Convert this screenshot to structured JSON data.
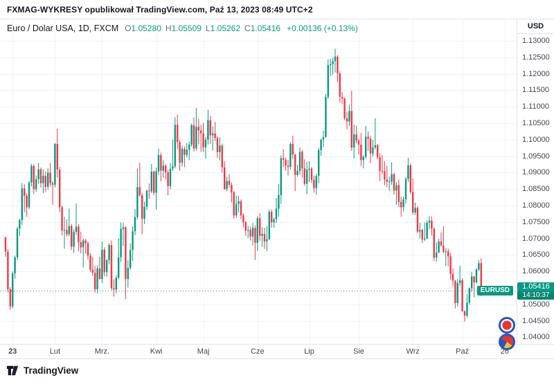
{
  "header": {
    "text": "FXMAG-WYKRESY opublikował TradingView.com, Paź 13, 2023 08:49 UTC+2"
  },
  "legend": {
    "symbol": "Euro / Dolar USA, 1D, FXCM",
    "o_label": "O",
    "o_value": "1.05280",
    "h_label": "H",
    "h_value": "1.05509",
    "l_label": "L",
    "l_value": "1.05262",
    "c_label": "C",
    "c_value": "1.05416",
    "change": "+0.00136 (+0.13%)"
  },
  "price_flag": {
    "symbol": "EURUSD",
    "price": "1.05416",
    "countdown": "14:10:37"
  },
  "footer": {
    "brand": "TradingView"
  },
  "colors": {
    "up": "#089981",
    "down": "#f23645",
    "accent": "#089981",
    "grid": "#f0f3fa",
    "axis_text": "#434651",
    "border": "#e0e3eb",
    "price_line": "#089981"
  },
  "chart_data": {
    "type": "candlestick",
    "title": "Euro / Dolar USA, 1D, FXCM",
    "ylabel": "USD",
    "y_range": [
      1.038,
      1.1365
    ],
    "y_ticks": [
      "1.13000",
      "1.12500",
      "1.12000",
      "1.11500",
      "1.11000",
      "1.10500",
      "1.10000",
      "1.09500",
      "1.09000",
      "1.08500",
      "1.08000",
      "1.07500",
      "1.07000",
      "1.06500",
      "1.06000",
      "1.05500",
      "1.05000",
      "1.04500",
      "1.04000"
    ],
    "x_ticks": [
      {
        "label": "23",
        "index": 3,
        "year": true
      },
      {
        "label": "Lut",
        "index": 21
      },
      {
        "label": "Mrz.",
        "index": 41
      },
      {
        "label": "Kwi",
        "index": 64
      },
      {
        "label": "Maj",
        "index": 84
      },
      {
        "label": "Cze",
        "index": 107
      },
      {
        "label": "Lip",
        "index": 129
      },
      {
        "label": "Sie",
        "index": 150
      },
      {
        "label": "Wrz",
        "index": 173
      },
      {
        "label": "Paź",
        "index": 194
      },
      {
        "label": "26",
        "index": 212
      }
    ],
    "current_price": 1.05416,
    "candles": [
      [
        1.0703,
        1.0706,
        1.0644,
        1.066
      ],
      [
        1.066,
        1.0668,
        1.0537,
        1.0546
      ],
      [
        1.0546,
        1.0552,
        1.0484,
        1.0494
      ],
      [
        1.0494,
        1.06,
        1.0488,
        1.0594
      ],
      [
        1.0594,
        1.0648,
        1.0578,
        1.0643
      ],
      [
        1.0643,
        1.0736,
        1.0635,
        1.073
      ],
      [
        1.073,
        1.076,
        1.0708,
        1.0756
      ],
      [
        1.0756,
        1.0868,
        1.0741,
        1.0852
      ],
      [
        1.0852,
        1.0864,
        1.078,
        1.083
      ],
      [
        1.083,
        1.0837,
        1.0766,
        1.0795
      ],
      [
        1.0795,
        1.0874,
        1.0789,
        1.087
      ],
      [
        1.087,
        1.0927,
        1.0858,
        1.092
      ],
      [
        1.092,
        1.0925,
        1.0835,
        1.085
      ],
      [
        1.085,
        1.0891,
        1.0842,
        1.088
      ],
      [
        1.088,
        1.0929,
        1.0866,
        1.091
      ],
      [
        1.091,
        1.0915,
        1.0855,
        1.0868
      ],
      [
        1.0868,
        1.0909,
        1.0838,
        1.089
      ],
      [
        1.089,
        1.0903,
        1.0841,
        1.0857
      ],
      [
        1.0857,
        1.0913,
        1.0848,
        1.09
      ],
      [
        1.09,
        1.0929,
        1.0858,
        1.0868
      ],
      [
        1.0868,
        1.0874,
        1.0802,
        1.0863
      ],
      [
        1.0863,
        1.099,
        1.0855,
        1.0987
      ],
      [
        1.0987,
        1.1033,
        1.0885,
        1.0909
      ],
      [
        1.0909,
        1.0917,
        1.078,
        1.0795
      ],
      [
        1.0795,
        1.08,
        1.0709,
        1.0724
      ],
      [
        1.0724,
        1.0766,
        1.0669,
        1.0726
      ],
      [
        1.0726,
        1.0758,
        1.0706,
        1.0713
      ],
      [
        1.0713,
        1.0791,
        1.0707,
        1.0738
      ],
      [
        1.0738,
        1.0744,
        1.0665,
        1.0675
      ],
      [
        1.0675,
        1.0728,
        1.0656,
        1.072
      ],
      [
        1.072,
        1.0806,
        1.0711,
        1.0736
      ],
      [
        1.0736,
        1.0743,
        1.0661,
        1.0689
      ],
      [
        1.0689,
        1.072,
        1.0655,
        1.0673
      ],
      [
        1.0673,
        1.07,
        1.0612,
        1.0694
      ],
      [
        1.0694,
        1.0699,
        1.0654,
        1.0686
      ],
      [
        1.0686,
        1.0691,
        1.0636,
        1.0648
      ],
      [
        1.0648,
        1.0655,
        1.0598,
        1.0605
      ],
      [
        1.0605,
        1.0644,
        1.0586,
        1.0596
      ],
      [
        1.0596,
        1.0617,
        1.0536,
        1.0546
      ],
      [
        1.0546,
        1.0619,
        1.0533,
        1.0609
      ],
      [
        1.0609,
        1.0645,
        1.0575,
        1.0577
      ],
      [
        1.0577,
        1.0691,
        1.0565,
        1.0666
      ],
      [
        1.0666,
        1.0673,
        1.0585,
        1.0598
      ],
      [
        1.0598,
        1.0638,
        1.0584,
        1.0634
      ],
      [
        1.0634,
        1.0686,
        1.0622,
        1.068
      ],
      [
        1.068,
        1.0694,
        1.0543,
        1.0549
      ],
      [
        1.0549,
        1.0577,
        1.0524,
        1.0545
      ],
      [
        1.0545,
        1.0589,
        1.0533,
        1.0581
      ],
      [
        1.0581,
        1.0701,
        1.0576,
        1.0643
      ],
      [
        1.0643,
        1.0749,
        1.0628,
        1.0729
      ],
      [
        1.0729,
        1.0748,
        1.0678,
        1.0734
      ],
      [
        1.0734,
        1.0737,
        1.0516,
        1.0577
      ],
      [
        1.0577,
        1.0635,
        1.0551,
        1.0611
      ],
      [
        1.0611,
        1.0685,
        1.0605,
        1.0665
      ],
      [
        1.0665,
        1.0737,
        1.0632,
        1.0722
      ],
      [
        1.0722,
        1.0789,
        1.071,
        1.0765
      ],
      [
        1.0765,
        1.0912,
        1.0758,
        1.0856
      ],
      [
        1.0856,
        1.093,
        1.0827,
        1.0831
      ],
      [
        1.0831,
        1.0838,
        1.0713,
        1.076
      ],
      [
        1.076,
        1.0812,
        1.0744,
        1.0796
      ],
      [
        1.0796,
        1.0848,
        1.0787,
        1.0845
      ],
      [
        1.0845,
        1.0867,
        1.082,
        1.0843
      ],
      [
        1.0843,
        1.0926,
        1.0838,
        1.0903
      ],
      [
        1.0903,
        1.0907,
        1.0831,
        1.0839
      ],
      [
        1.0839,
        1.0915,
        1.0788,
        1.0904
      ],
      [
        1.0904,
        1.0973,
        1.0893,
        1.0953
      ],
      [
        1.0953,
        1.0961,
        1.0874,
        1.0906
      ],
      [
        1.0906,
        1.0938,
        1.0885,
        1.0921
      ],
      [
        1.0921,
        1.0926,
        1.0879,
        1.0901
      ],
      [
        1.0901,
        1.0908,
        1.0831,
        1.0859
      ],
      [
        1.0859,
        1.0929,
        1.085,
        1.0912
      ],
      [
        1.0912,
        1.1,
        1.0905,
        1.0919
      ],
      [
        1.0919,
        1.1068,
        1.0913,
        1.1045
      ],
      [
        1.1045,
        1.1076,
        1.0971,
        1.0993
      ],
      [
        1.0993,
        1.0999,
        1.0906,
        1.093
      ],
      [
        1.093,
        1.0983,
        1.0919,
        1.0972
      ],
      [
        1.0972,
        1.098,
        1.0917,
        1.0954
      ],
      [
        1.0954,
        1.099,
        1.0946,
        1.0969
      ],
      [
        1.0969,
        1.0994,
        1.0938,
        1.0985
      ],
      [
        1.0985,
        1.1049,
        1.0979,
        1.1044
      ],
      [
        1.1044,
        1.1067,
        1.0964,
        1.0973
      ],
      [
        1.0973,
        1.1096,
        1.0966,
        1.1039
      ],
      [
        1.1039,
        1.1063,
        1.0986,
        1.1028
      ],
      [
        1.1028,
        1.1045,
        1.0963,
        1.1019
      ],
      [
        1.1019,
        1.1051,
        1.0963,
        1.0977
      ],
      [
        1.0977,
        1.1008,
        1.0942,
        1.1
      ],
      [
        1.1,
        1.1091,
        1.0985,
        1.1059
      ],
      [
        1.1059,
        1.1072,
        1.0987,
        1.1013
      ],
      [
        1.1013,
        1.104,
        1.0967,
        1.1019
      ],
      [
        1.1019,
        1.1054,
        1.0996,
        1.1005
      ],
      [
        1.1005,
        1.101,
        1.0944,
        1.0962
      ],
      [
        1.0962,
        1.1007,
        1.0937,
        1.0982
      ],
      [
        1.0982,
        1.0988,
        1.09,
        1.0916
      ],
      [
        1.0916,
        1.0934,
        1.0848,
        1.085
      ],
      [
        1.085,
        1.0888,
        1.0843,
        1.0875
      ],
      [
        1.0875,
        1.0895,
        1.0855,
        1.0863
      ],
      [
        1.0863,
        1.087,
        1.081,
        1.084
      ],
      [
        1.084,
        1.0845,
        1.076,
        1.077
      ],
      [
        1.077,
        1.0831,
        1.0762,
        1.0805
      ],
      [
        1.0805,
        1.0829,
        1.078,
        1.0813
      ],
      [
        1.0813,
        1.0818,
        1.0759,
        1.077
      ],
      [
        1.077,
        1.0777,
        1.0734,
        1.075
      ],
      [
        1.075,
        1.0753,
        1.0708,
        1.0724
      ],
      [
        1.0724,
        1.0739,
        1.0701,
        1.0726
      ],
      [
        1.0726,
        1.0736,
        1.0694,
        1.0706
      ],
      [
        1.0706,
        1.0747,
        1.0679,
        1.0732
      ],
      [
        1.0732,
        1.0739,
        1.0635,
        1.0687
      ],
      [
        1.0687,
        1.0768,
        1.0662,
        1.0762
      ],
      [
        1.0762,
        1.0777,
        1.0693,
        1.0708
      ],
      [
        1.0708,
        1.0734,
        1.0675,
        1.0714
      ],
      [
        1.0714,
        1.0733,
        1.0668,
        1.0691
      ],
      [
        1.0691,
        1.0738,
        1.0662,
        1.0698
      ],
      [
        1.0698,
        1.0787,
        1.0695,
        1.0781
      ],
      [
        1.0781,
        1.0788,
        1.0733,
        1.0749
      ],
      [
        1.0749,
        1.0765,
        1.0733,
        1.0758
      ],
      [
        1.0758,
        1.0823,
        1.0747,
        1.0791
      ],
      [
        1.0791,
        1.0865,
        1.0766,
        1.0832
      ],
      [
        1.0832,
        1.0952,
        1.0805,
        1.0944
      ],
      [
        1.0944,
        1.0971,
        1.0917,
        1.0939
      ],
      [
        1.0939,
        1.0946,
        1.0906,
        1.0921
      ],
      [
        1.0921,
        1.0939,
        1.0891,
        1.0917
      ],
      [
        1.0917,
        1.0992,
        1.0909,
        1.0987
      ],
      [
        1.0987,
        1.1012,
        1.0942,
        1.0955
      ],
      [
        1.0955,
        1.0957,
        1.0844,
        1.0893
      ],
      [
        1.0893,
        1.0923,
        1.0887,
        1.0905
      ],
      [
        1.0905,
        1.0977,
        1.0894,
        1.0963
      ],
      [
        1.0963,
        1.0968,
        1.0885,
        1.0913
      ],
      [
        1.0913,
        1.094,
        1.086,
        1.0866
      ],
      [
        1.0866,
        1.0932,
        1.0835,
        1.0909
      ],
      [
        1.0909,
        1.0934,
        1.0871,
        1.0912
      ],
      [
        1.0912,
        1.0917,
        1.0868,
        1.0878
      ],
      [
        1.0878,
        1.0891,
        1.0839,
        1.0853
      ],
      [
        1.0853,
        1.0897,
        1.0833,
        1.089
      ],
      [
        1.089,
        1.0975,
        1.0867,
        1.0968
      ],
      [
        1.0968,
        1.1003,
        1.0951,
        1.1
      ],
      [
        1.1,
        1.1027,
        1.0977,
        1.1008
      ],
      [
        1.1008,
        1.1139,
        1.1006,
        1.113
      ],
      [
        1.113,
        1.1244,
        1.1124,
        1.1226
      ],
      [
        1.1226,
        1.1245,
        1.1193,
        1.1229
      ],
      [
        1.1229,
        1.1248,
        1.1196,
        1.1238
      ],
      [
        1.1238,
        1.1276,
        1.1204,
        1.1252
      ],
      [
        1.1252,
        1.1256,
        1.1175,
        1.1201
      ],
      [
        1.1201,
        1.1207,
        1.1113,
        1.113
      ],
      [
        1.113,
        1.1144,
        1.1109,
        1.1125
      ],
      [
        1.1125,
        1.1127,
        1.1059,
        1.1065
      ],
      [
        1.1065,
        1.1084,
        1.1031,
        1.1055
      ],
      [
        1.1055,
        1.1106,
        1.1042,
        1.1087
      ],
      [
        1.1087,
        1.1149,
        1.0966,
        1.0976
      ],
      [
        1.0976,
        1.1046,
        1.0943,
        1.1016
      ],
      [
        1.1016,
        1.1043,
        1.0989,
        1.0998
      ],
      [
        1.0998,
        1.1003,
        1.0955,
        1.0985
      ],
      [
        1.0985,
        1.102,
        1.092,
        1.0938
      ],
      [
        1.0938,
        1.0953,
        1.0913,
        1.0948
      ],
      [
        1.0948,
        1.1042,
        1.0942,
        1.1009
      ],
      [
        1.1009,
        1.1025,
        1.0966,
        1.1003
      ],
      [
        1.1003,
        1.101,
        1.0929,
        1.0958
      ],
      [
        1.0958,
        1.0999,
        1.0949,
        1.0976
      ],
      [
        1.0976,
        1.1065,
        1.097,
        1.0983
      ],
      [
        1.0983,
        1.0987,
        1.0941,
        1.0947
      ],
      [
        1.0947,
        1.0959,
        1.0874,
        1.0905
      ],
      [
        1.0905,
        1.0954,
        1.0895,
        1.0904
      ],
      [
        1.0904,
        1.0934,
        1.0862,
        1.0879
      ],
      [
        1.0879,
        1.092,
        1.0856,
        1.0872
      ],
      [
        1.0872,
        1.0888,
        1.0845,
        1.0873
      ],
      [
        1.0873,
        1.0931,
        1.0863,
        1.0895
      ],
      [
        1.0895,
        1.0899,
        1.0833,
        1.0845
      ],
      [
        1.0845,
        1.0871,
        1.0802,
        1.0862
      ],
      [
        1.0862,
        1.0879,
        1.0796,
        1.0811
      ],
      [
        1.0811,
        1.0827,
        1.0766,
        1.0795
      ],
      [
        1.0795,
        1.0827,
        1.0782,
        1.0819
      ],
      [
        1.0819,
        1.0886,
        1.0806,
        1.0881
      ],
      [
        1.0881,
        1.0945,
        1.0872,
        1.0922
      ],
      [
        1.0922,
        1.0928,
        1.0835,
        1.0841
      ],
      [
        1.0841,
        1.0882,
        1.0772,
        1.0779
      ],
      [
        1.0779,
        1.0809,
        1.0771,
        1.0793
      ],
      [
        1.0793,
        1.0798,
        1.0716,
        1.0721
      ],
      [
        1.0721,
        1.0748,
        1.0701,
        1.0726
      ],
      [
        1.0726,
        1.073,
        1.0686,
        1.0697
      ],
      [
        1.0697,
        1.0748,
        1.0692,
        1.07
      ],
      [
        1.07,
        1.0755,
        1.0698,
        1.0748
      ],
      [
        1.0748,
        1.0768,
        1.0728,
        1.0754
      ],
      [
        1.0754,
        1.0767,
        1.0709,
        1.073
      ],
      [
        1.073,
        1.0734,
        1.0632,
        1.0642
      ],
      [
        1.0642,
        1.0688,
        1.0629,
        1.0657
      ],
      [
        1.0657,
        1.0699,
        1.0656,
        1.0691
      ],
      [
        1.0691,
        1.0719,
        1.0675,
        1.0679
      ],
      [
        1.0679,
        1.0737,
        1.0655,
        1.066
      ],
      [
        1.066,
        1.0671,
        1.0617,
        1.0661
      ],
      [
        1.0661,
        1.0669,
        1.0615,
        1.0646
      ],
      [
        1.0646,
        1.0656,
        1.0575,
        1.0593
      ],
      [
        1.0593,
        1.0609,
        1.0555,
        1.0572
      ],
      [
        1.0572,
        1.0574,
        1.0488,
        1.0504
      ],
      [
        1.0504,
        1.0577,
        1.0494,
        1.0565
      ],
      [
        1.0565,
        1.0617,
        1.0556,
        1.0573
      ],
      [
        1.0573,
        1.0579,
        1.0478,
        1.0479
      ],
      [
        1.0479,
        1.0482,
        1.0448,
        1.0466
      ],
      [
        1.0466,
        1.0531,
        1.046,
        1.0505
      ],
      [
        1.0505,
        1.0551,
        1.0499,
        1.0549
      ],
      [
        1.0549,
        1.0599,
        1.0538,
        1.0585
      ],
      [
        1.0585,
        1.0586,
        1.0521,
        1.0567
      ],
      [
        1.0567,
        1.061,
        1.0564,
        1.0606
      ],
      [
        1.0606,
        1.0634,
        1.0601,
        1.0625
      ],
      [
        1.0625,
        1.064,
        1.0525,
        1.0528
      ],
      [
        1.0528,
        1.05509,
        1.05262,
        1.05416
      ]
    ]
  }
}
